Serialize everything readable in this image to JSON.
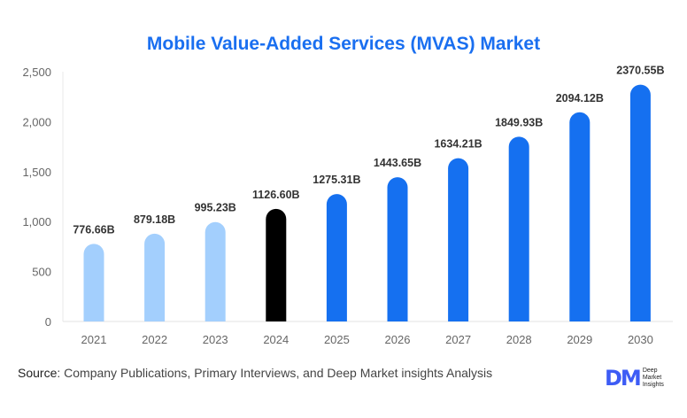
{
  "chart_data": {
    "type": "bar",
    "title": "Mobile Value-Added Services (MVAS) Market",
    "categories": [
      "2021",
      "2022",
      "2023",
      "2024",
      "2025",
      "2026",
      "2027",
      "2028",
      "2029",
      "2030"
    ],
    "values": [
      776.66,
      879.18,
      995.23,
      1126.6,
      1275.31,
      1443.65,
      1634.21,
      1849.93,
      2094.12,
      2370.55
    ],
    "data_labels": [
      "776.66B",
      "879.18B",
      "995.23B",
      "1126.60B",
      "1275.31B",
      "1443.65B",
      "1634.21B",
      "1849.93B",
      "2094.12B",
      "2370.55B"
    ],
    "yticks": [
      "0",
      "500",
      "1,000",
      "1,500",
      "2,000",
      "2,500"
    ],
    "ylim": [
      0,
      2500
    ],
    "grid": false,
    "colors": {
      "historical": "#a3cffd",
      "base_year": "#000000",
      "forecast": "#1570f0",
      "title": "#1a6ff0"
    }
  },
  "footer": {
    "source_label": "Source",
    "source_text": ": Company Publications, Primary Interviews, and Deep Market insights Analysis",
    "logo_mark": "DM",
    "logo_text": [
      "Deep",
      "Market",
      "Insights"
    ]
  }
}
